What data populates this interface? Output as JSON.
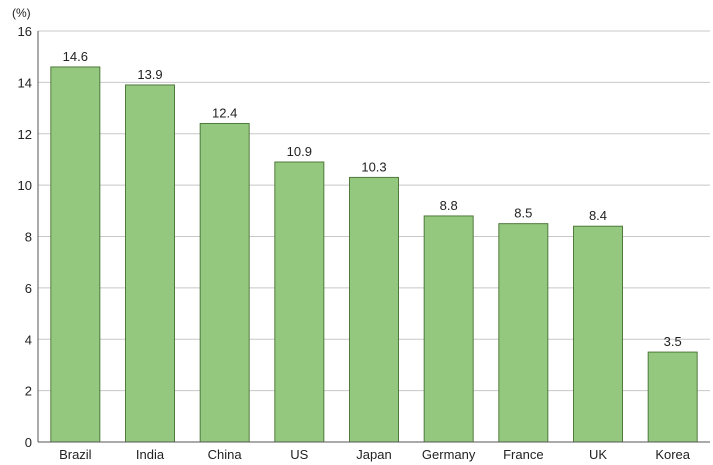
{
  "chart_data": {
    "type": "bar",
    "title": "",
    "xlabel": "",
    "ylabel": "",
    "unit_label": "(%)",
    "categories": [
      "Brazil",
      "India",
      "China",
      "US",
      "Japan",
      "Germany",
      "France",
      "UK",
      "Korea"
    ],
    "values": [
      14.6,
      13.9,
      12.4,
      10.9,
      10.3,
      8.8,
      8.5,
      8.4,
      3.5
    ],
    "value_labels": [
      "14.6",
      "13.9",
      "12.4",
      "10.9",
      "10.3",
      "8.8",
      "8.5",
      "8.4",
      "3.5"
    ],
    "ylim": [
      0,
      16
    ],
    "yticks": [
      0,
      2,
      4,
      6,
      8,
      10,
      12,
      14,
      16
    ],
    "ytick_labels": [
      "0",
      "2",
      "4",
      "6",
      "8",
      "10",
      "12",
      "14",
      "16"
    ],
    "grid": true,
    "legend": "none",
    "colors": {
      "bar_fill": "#95c87f",
      "bar_stroke": "#4f7a3c",
      "grid": "#c8c8c8",
      "axis": "#555555"
    }
  }
}
